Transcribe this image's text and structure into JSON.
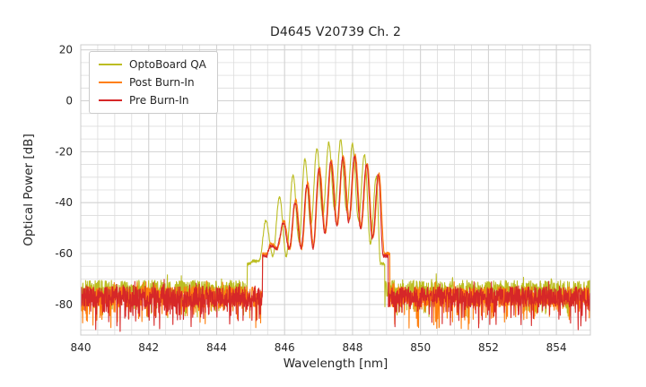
{
  "figure": {
    "title": "D4645 V20739 Ch. 2",
    "xlabel": "Wavelength [nm]",
    "ylabel": "Optical Power [dB]"
  },
  "legend": {
    "position": "upper left",
    "items": [
      {
        "label": "OptoBoard QA",
        "color": "#bcbd22"
      },
      {
        "label": "Post Burn-In",
        "color": "#ff7f0e"
      },
      {
        "label": "Pre Burn-In",
        "color": "#d62728"
      }
    ]
  },
  "chart_data": {
    "type": "line",
    "title": "D4645 V20739 Ch. 2",
    "xlabel": "Wavelength [nm]",
    "ylabel": "Optical Power [dB]",
    "xlim": [
      840,
      855
    ],
    "ylim": [
      -92,
      22
    ],
    "xticks": [
      840,
      842,
      844,
      846,
      848,
      850,
      852,
      854
    ],
    "yticks": [
      20,
      0,
      -20,
      -40,
      -60,
      -80
    ],
    "x_minor_step": 0.5,
    "y_minor_step": 5,
    "grid": true,
    "grid_color": "#dcdcdc",
    "axes_border_color": "#cccccc",
    "legend_position": "upper left",
    "description": "Optical spectra (laser longitudinal modes over a noise floor near -77 dB). OptoBoard QA peaks near 847.6 nm at about -15.5 dB; Pre/Post Burn-In nearly overlap, peaking near 848.1 nm at about -22 dB.",
    "series": [
      {
        "name": "OptoBoard QA",
        "color": "#bcbd22",
        "seed": 11,
        "noise_base": -74,
        "noise_spread": 7,
        "noise_dip": 9,
        "signal_range": [
          844.9,
          848.95
        ],
        "edge_db": -64,
        "valley_drop": 26,
        "valley_floor": -61,
        "peaks": [
          [
            845.05,
            -63
          ],
          [
            845.45,
            -47
          ],
          [
            845.85,
            -38
          ],
          [
            846.25,
            -29
          ],
          [
            846.6,
            -23
          ],
          [
            846.95,
            -19
          ],
          [
            847.3,
            -16.5
          ],
          [
            847.65,
            -15.5
          ],
          [
            848.0,
            -17
          ],
          [
            848.35,
            -21
          ],
          [
            848.7,
            -30
          ]
        ]
      },
      {
        "name": "Post Burn-In",
        "color": "#ff7f0e",
        "seed": 22,
        "noise_base": -77,
        "noise_spread": 8,
        "noise_dip": 10,
        "signal_range": [
          845.35,
          849.1
        ],
        "edge_db": -60,
        "valley_drop": 25,
        "valley_floor": -58,
        "peaks": [
          [
            845.6,
            -56
          ],
          [
            845.98,
            -47
          ],
          [
            846.33,
            -39
          ],
          [
            846.68,
            -32
          ],
          [
            847.03,
            -26.5
          ],
          [
            847.38,
            -23.5
          ],
          [
            847.73,
            -21.8
          ],
          [
            848.08,
            -21.5
          ],
          [
            848.43,
            -24.5
          ],
          [
            848.78,
            -28.5
          ]
        ]
      },
      {
        "name": "Pre Burn-In",
        "color": "#d62728",
        "seed": 33,
        "noise_base": -77,
        "noise_spread": 8,
        "noise_dip": 10,
        "signal_range": [
          845.35,
          849.05
        ],
        "edge_db": -61,
        "valley_drop": 25,
        "valley_floor": -58,
        "peaks": [
          [
            845.58,
            -57
          ],
          [
            845.96,
            -48
          ],
          [
            846.31,
            -40
          ],
          [
            846.66,
            -33
          ],
          [
            847.01,
            -27
          ],
          [
            847.36,
            -24
          ],
          [
            847.71,
            -22.5
          ],
          [
            848.06,
            -22
          ],
          [
            848.41,
            -25
          ],
          [
            848.76,
            -29
          ]
        ]
      }
    ]
  }
}
